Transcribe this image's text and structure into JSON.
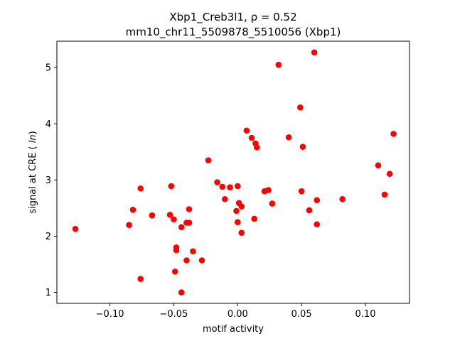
{
  "chart_data": {
    "type": "scatter",
    "title_line1": "Xbp1_Creb3l1, ρ = 0.52",
    "title_line2": "mm10_chr11_5509878_5510056 (Xbp1)",
    "xlabel": "motif activity",
    "ylabel": "signal at CRE (ln)",
    "xlim": [
      -0.1415,
      0.1345
    ],
    "ylim": [
      0.805,
      5.47
    ],
    "xticks": [
      -0.1,
      -0.05,
      0.0,
      0.05,
      0.1
    ],
    "xtick_labels": [
      "−0.10",
      "−0.05",
      "0.00",
      "0.05",
      "0.10"
    ],
    "yticks": [
      1,
      2,
      3,
      4,
      5
    ],
    "ytick_labels": [
      "1",
      "2",
      "3",
      "4",
      "5"
    ],
    "grid": false,
    "marker_color": "#ff0000",
    "points": [
      {
        "x": -0.127,
        "y": 2.13
      },
      {
        "x": -0.085,
        "y": 2.2
      },
      {
        "x": -0.082,
        "y": 2.47
      },
      {
        "x": -0.076,
        "y": 2.85
      },
      {
        "x": -0.076,
        "y": 1.24
      },
      {
        "x": -0.067,
        "y": 2.37
      },
      {
        "x": -0.052,
        "y": 2.89
      },
      {
        "x": -0.053,
        "y": 2.38
      },
      {
        "x": -0.05,
        "y": 2.3
      },
      {
        "x": -0.048,
        "y": 1.8
      },
      {
        "x": -0.048,
        "y": 1.75
      },
      {
        "x": -0.049,
        "y": 1.37
      },
      {
        "x": -0.044,
        "y": 2.16
      },
      {
        "x": -0.044,
        "y": 1.0
      },
      {
        "x": -0.04,
        "y": 2.24
      },
      {
        "x": -0.038,
        "y": 2.48
      },
      {
        "x": -0.038,
        "y": 2.24
      },
      {
        "x": -0.04,
        "y": 1.57
      },
      {
        "x": -0.035,
        "y": 1.73
      },
      {
        "x": -0.028,
        "y": 1.57
      },
      {
        "x": -0.023,
        "y": 3.35
      },
      {
        "x": -0.016,
        "y": 2.96
      },
      {
        "x": -0.012,
        "y": 2.88
      },
      {
        "x": -0.01,
        "y": 2.66
      },
      {
        "x": -0.006,
        "y": 2.87
      },
      {
        "x": -0.001,
        "y": 2.45
      },
      {
        "x": 0.0,
        "y": 2.89
      },
      {
        "x": 0.0,
        "y": 2.25
      },
      {
        "x": 0.001,
        "y": 2.59
      },
      {
        "x": 0.003,
        "y": 2.53
      },
      {
        "x": 0.003,
        "y": 2.06
      },
      {
        "x": 0.007,
        "y": 3.88
      },
      {
        "x": 0.011,
        "y": 3.75
      },
      {
        "x": 0.013,
        "y": 2.31
      },
      {
        "x": 0.014,
        "y": 3.65
      },
      {
        "x": 0.015,
        "y": 3.58
      },
      {
        "x": 0.021,
        "y": 2.8
      },
      {
        "x": 0.024,
        "y": 2.82
      },
      {
        "x": 0.027,
        "y": 2.58
      },
      {
        "x": 0.032,
        "y": 5.05
      },
      {
        "x": 0.04,
        "y": 3.76
      },
      {
        "x": 0.049,
        "y": 4.29
      },
      {
        "x": 0.05,
        "y": 2.8
      },
      {
        "x": 0.051,
        "y": 3.59
      },
      {
        "x": 0.056,
        "y": 2.46
      },
      {
        "x": 0.06,
        "y": 5.27
      },
      {
        "x": 0.062,
        "y": 2.64
      },
      {
        "x": 0.062,
        "y": 2.21
      },
      {
        "x": 0.082,
        "y": 2.66
      },
      {
        "x": 0.11,
        "y": 3.26
      },
      {
        "x": 0.115,
        "y": 2.74
      },
      {
        "x": 0.119,
        "y": 3.11
      },
      {
        "x": 0.122,
        "y": 3.82
      }
    ]
  }
}
